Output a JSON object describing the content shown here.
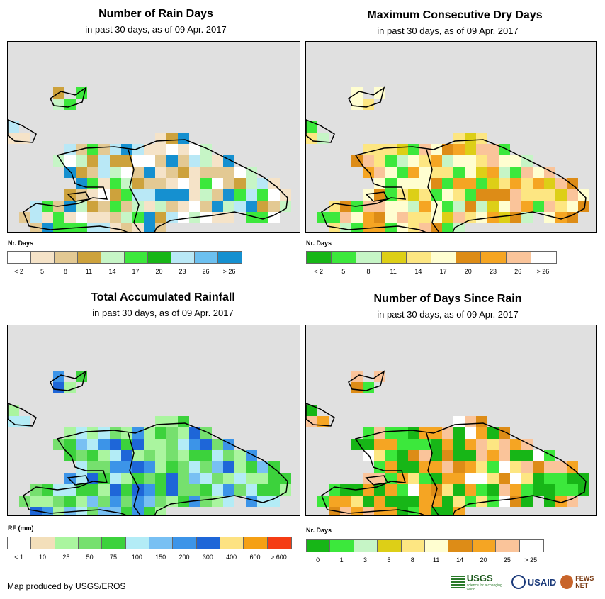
{
  "panels": [
    {
      "title": "Number of Rain Days",
      "subtitle": "in past 30 days, as of 09 Apr. 2017",
      "legend_title": "Nr. Days",
      "legend_colors": [
        "#ffffff",
        "#f5e3c8",
        "#e3c993",
        "#cda23c",
        "#c6f5c6",
        "#3ce83c",
        "#17b617",
        "#b9e8f6",
        "#6cc0f0",
        "#1590d0"
      ],
      "legend_labels": [
        "< 2",
        "5",
        "8",
        "11",
        "14",
        "17",
        "20",
        "23",
        "26",
        "> 26"
      ],
      "map_palette": [
        "#f5e3c8",
        "#e3c993",
        "#cda23c",
        "#f5e3c8",
        "#e3c993",
        "#ffffff",
        "#c6f5c6",
        "#3ce83c",
        "#b9e8f6",
        "#1590d0"
      ]
    },
    {
      "title": "Maximum Consecutive Dry Days",
      "subtitle": "in past 30 days, as of 09 Apr. 2017",
      "legend_title": "Nr. Days",
      "legend_colors": [
        "#17b617",
        "#3ce83c",
        "#c6f5c6",
        "#ddcf17",
        "#fde682",
        "#fffed0",
        "#dd8c17",
        "#f5a523",
        "#fac49a",
        "#ffffff"
      ],
      "legend_labels": [
        "< 2",
        "5",
        "8",
        "11",
        "14",
        "17",
        "20",
        "23",
        "26",
        "> 26"
      ],
      "map_palette": [
        "#fffed0",
        "#fde682",
        "#fffed0",
        "#ddcf17",
        "#fde682",
        "#dd8c17",
        "#f5a523",
        "#fac49a",
        "#c6f5c6",
        "#3ce83c"
      ]
    },
    {
      "title": "Total Accumulated Rainfall",
      "subtitle": "in past 30 days, as of 09 Apr. 2017",
      "legend_title": "RF (mm)",
      "legend_colors": [
        "#ffffff",
        "#f3dfba",
        "#aaf59f",
        "#76e06e",
        "#3cd23c",
        "#b3ecf6",
        "#78c0f3",
        "#3c94e8",
        "#1e66d8",
        "#fde282",
        "#f5a014",
        "#f53c14"
      ],
      "legend_labels": [
        "< 1",
        "10",
        "25",
        "50",
        "75",
        "100",
        "150",
        "200",
        "300",
        "400",
        "600",
        "> 600"
      ],
      "map_palette": [
        "#aaf59f",
        "#76e06e",
        "#3cd23c",
        "#76e06e",
        "#aaf59f",
        "#b3ecf6",
        "#78c0f3",
        "#3c94e8",
        "#1e66d8",
        "#3cd23c"
      ]
    },
    {
      "title": "Number of Days Since Rain",
      "subtitle": "in past 30 days, as of 09 Apr. 2017",
      "legend_title": "Nr. Days",
      "legend_colors": [
        "#17b617",
        "#3ce83c",
        "#c6f5c6",
        "#ddcf17",
        "#fde682",
        "#fffed0",
        "#dd8c17",
        "#f5a523",
        "#fac49a",
        "#ffffff"
      ],
      "legend_labels": [
        "0",
        "1",
        "3",
        "5",
        "8",
        "11",
        "14",
        "20",
        "25",
        "> 25"
      ],
      "map_palette": [
        "#17b617",
        "#f5a523",
        "#17b617",
        "#f5a523",
        "#dd8c17",
        "#fac49a",
        "#fde682",
        "#3ce83c",
        "#ffffff",
        "#17b617"
      ]
    }
  ],
  "credit": "Map produced by USGS/EROS",
  "logos": {
    "usgs": "USGS",
    "usgs_tagline": "science for a changing world",
    "usaid": "USAID",
    "fews": "FEWS NET"
  }
}
